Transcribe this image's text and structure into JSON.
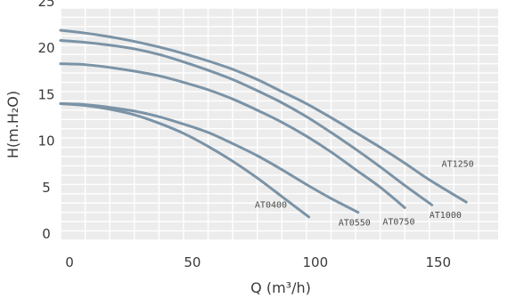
{
  "chart_data": {
    "type": "line",
    "title": "",
    "xlabel": "Q (m³/h)",
    "ylabel": "H(m.H₂O)",
    "xlim": [
      0,
      178
    ],
    "ylim": [
      0,
      25
    ],
    "xticks": [
      0,
      50,
      100,
      150
    ],
    "yticks": [
      0,
      5,
      10,
      15,
      20,
      25
    ],
    "grid": true,
    "background": "#ececec",
    "grid_color": "#ffffff",
    "line_color": "#7b93a6",
    "series": [
      {
        "name": "AT0400",
        "points": [
          [
            0,
            14.7
          ],
          [
            10,
            14.5
          ],
          [
            20,
            14.1
          ],
          [
            30,
            13.5
          ],
          [
            40,
            12.6
          ],
          [
            50,
            11.5
          ],
          [
            60,
            10.1
          ],
          [
            70,
            8.5
          ],
          [
            80,
            6.7
          ],
          [
            90,
            4.7
          ],
          [
            101,
            2.5
          ]
        ]
      },
      {
        "name": "AT0550",
        "points": [
          [
            0,
            14.7
          ],
          [
            10,
            14.6
          ],
          [
            20,
            14.3
          ],
          [
            30,
            13.9
          ],
          [
            40,
            13.3
          ],
          [
            50,
            12.5
          ],
          [
            60,
            11.6
          ],
          [
            70,
            10.4
          ],
          [
            80,
            9.1
          ],
          [
            90,
            7.6
          ],
          [
            100,
            6.0
          ],
          [
            110,
            4.5
          ],
          [
            121,
            3.0
          ]
        ]
      },
      {
        "name": "AT0750",
        "points": [
          [
            0,
            19.0
          ],
          [
            10,
            18.9
          ],
          [
            20,
            18.6
          ],
          [
            30,
            18.2
          ],
          [
            40,
            17.7
          ],
          [
            50,
            17.0
          ],
          [
            60,
            16.2
          ],
          [
            70,
            15.2
          ],
          [
            80,
            14.0
          ],
          [
            90,
            12.7
          ],
          [
            100,
            11.2
          ],
          [
            110,
            9.5
          ],
          [
            120,
            7.6
          ],
          [
            130,
            5.7
          ],
          [
            140,
            3.5
          ]
        ]
      },
      {
        "name": "AT1000",
        "points": [
          [
            0,
            21.5
          ],
          [
            10,
            21.3
          ],
          [
            20,
            21.0
          ],
          [
            30,
            20.6
          ],
          [
            40,
            20.0
          ],
          [
            50,
            19.2
          ],
          [
            60,
            18.3
          ],
          [
            70,
            17.3
          ],
          [
            80,
            16.1
          ],
          [
            90,
            14.8
          ],
          [
            100,
            13.3
          ],
          [
            110,
            11.6
          ],
          [
            120,
            9.8
          ],
          [
            130,
            7.9
          ],
          [
            140,
            5.9
          ],
          [
            151,
            3.8
          ]
        ]
      },
      {
        "name": "AT1250",
        "points": [
          [
            0,
            22.6
          ],
          [
            10,
            22.3
          ],
          [
            20,
            21.9
          ],
          [
            30,
            21.4
          ],
          [
            40,
            20.8
          ],
          [
            50,
            20.1
          ],
          [
            60,
            19.3
          ],
          [
            70,
            18.4
          ],
          [
            80,
            17.3
          ],
          [
            90,
            16.0
          ],
          [
            100,
            14.7
          ],
          [
            110,
            13.2
          ],
          [
            120,
            11.6
          ],
          [
            130,
            10.0
          ],
          [
            140,
            8.3
          ],
          [
            150,
            6.5
          ],
          [
            165,
            4.1
          ]
        ]
      }
    ],
    "annotations": [
      {
        "text": "AT0400",
        "x": 79,
        "y": 3.5,
        "anchor": "start"
      },
      {
        "text": "AT0550",
        "x": 113,
        "y": 1.6,
        "anchor": "start"
      },
      {
        "text": "AT0750",
        "x": 131,
        "y": 1.7,
        "anchor": "start"
      },
      {
        "text": "AT1000",
        "x": 150,
        "y": 2.4,
        "anchor": "start"
      },
      {
        "text": "AT1250",
        "x": 155,
        "y": 7.9,
        "anchor": "start"
      }
    ]
  }
}
